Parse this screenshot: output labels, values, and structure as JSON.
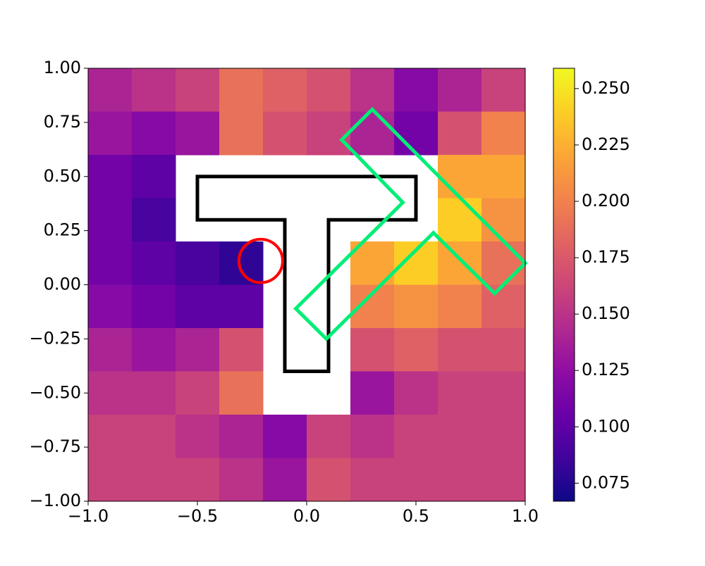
{
  "chart_data": {
    "type": "heatmap",
    "colormap": "plasma",
    "xlim": [
      -1,
      1
    ],
    "ylim": [
      -1,
      1
    ],
    "xticks": [
      {
        "value": -1,
        "label": "−1.0"
      },
      {
        "value": -0.5,
        "label": "−0.5"
      },
      {
        "value": 0,
        "label": "0.0"
      },
      0.5,
      {
        "value": 1,
        "label": "1.0"
      }
    ],
    "yticks": [
      {
        "value": -1,
        "label": "−1.00"
      },
      {
        "value": -0.75,
        "label": "−0.75"
      },
      {
        "value": -0.5,
        "label": "−0.50"
      },
      {
        "value": -0.25,
        "label": "−0.25"
      },
      {
        "value": 0,
        "label": "0.00"
      },
      0.25,
      {
        "value": 0.5,
        "label": "0.50"
      },
      0.75,
      {
        "value": 1,
        "label": "1.00"
      }
    ],
    "z": [
      [
        0.14,
        0.15,
        0.16,
        0.19,
        0.18,
        0.17,
        0.15,
        0.12,
        0.14,
        0.16
      ],
      [
        0.13,
        0.12,
        0.13,
        0.19,
        0.17,
        0.16,
        0.14,
        0.11,
        0.17,
        0.2
      ],
      [
        0.11,
        0.1,
        null,
        null,
        null,
        null,
        null,
        null,
        0.22,
        0.22
      ],
      [
        0.11,
        0.09,
        null,
        null,
        null,
        null,
        null,
        null,
        0.24,
        0.21
      ],
      [
        0.11,
        0.1,
        0.09,
        0.08,
        null,
        null,
        0.22,
        0.24,
        0.22,
        0.19
      ],
      [
        0.12,
        0.11,
        0.1,
        0.1,
        null,
        null,
        0.2,
        0.21,
        0.2,
        0.18
      ],
      [
        0.14,
        0.13,
        0.14,
        0.17,
        null,
        null,
        0.17,
        0.18,
        0.17,
        0.17
      ],
      [
        0.15,
        0.15,
        0.16,
        0.19,
        null,
        null,
        0.13,
        0.15,
        0.16,
        0.16
      ],
      [
        0.16,
        0.16,
        0.15,
        0.14,
        0.12,
        0.16,
        0.15,
        0.16,
        0.16,
        0.16
      ],
      [
        0.16,
        0.16,
        0.16,
        0.15,
        0.13,
        0.17,
        0.16,
        0.16,
        0.16,
        0.16
      ]
    ],
    "clim": [
      0.067,
      0.259
    ],
    "cticks": [
      0.075,
      {
        "value": 0.1,
        "label": "0.100"
      },
      0.125,
      {
        "value": 0.15,
        "label": "0.150"
      },
      0.175,
      {
        "value": 0.2,
        "label": "0.200"
      },
      0.225,
      {
        "value": 0.25,
        "label": "0.250"
      }
    ],
    "overlays": [
      {
        "type": "polygon",
        "color": "#000000",
        "x": [
          -0.5,
          0.5,
          0.5,
          0.1,
          0.1,
          -0.1,
          -0.1,
          -0.5
        ],
        "y": [
          0.5,
          0.5,
          0.3,
          0.3,
          -0.4,
          -0.4,
          0.3,
          0.3
        ]
      },
      {
        "type": "circle",
        "color": "#ff0000",
        "x": -0.21,
        "y": 0.11,
        "r": 0.1
      },
      {
        "type": "polygon",
        "color": "#00ee77",
        "x": [
          0.3,
          1.0,
          0.86,
          0.58,
          0.09,
          -0.05,
          0.44,
          0.16
        ],
        "y": [
          0.81,
          0.1,
          -0.04,
          0.24,
          -0.25,
          -0.11,
          0.38,
          0.67
        ]
      }
    ]
  }
}
